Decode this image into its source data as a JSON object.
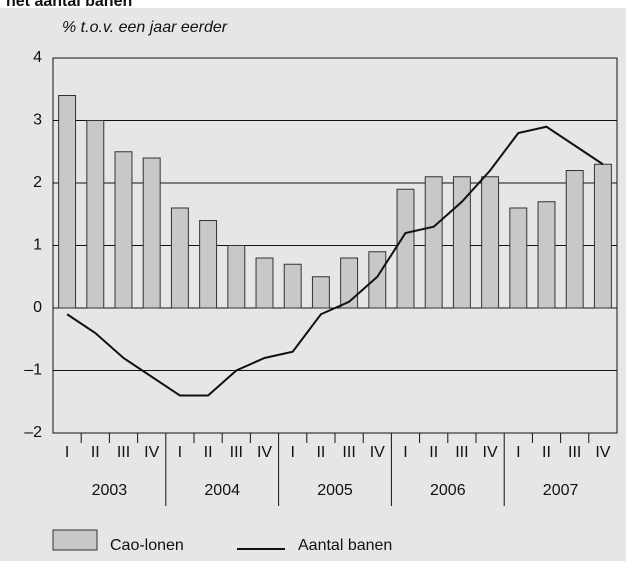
{
  "chart_data": {
    "type": "bar_line",
    "title": "het aantal banen",
    "y_label": "% t.o.v. een jaar eerder",
    "categories": [
      "I",
      "II",
      "III",
      "IV",
      "I",
      "II",
      "III",
      "IV",
      "I",
      "II",
      "III",
      "IV",
      "I",
      "II",
      "III",
      "IV",
      "I",
      "II",
      "III",
      "IV"
    ],
    "years": [
      "2003",
      "2004",
      "2005",
      "2006",
      "2007"
    ],
    "series": [
      {
        "name": "Cao-lonen",
        "kind": "bar",
        "color": "#c8c8c8",
        "values": [
          3.4,
          3.0,
          2.5,
          2.4,
          1.6,
          1.4,
          1.0,
          0.8,
          0.7,
          0.5,
          0.8,
          0.9,
          1.9,
          2.1,
          2.1,
          2.1,
          1.6,
          1.7,
          2.2,
          2.3
        ]
      },
      {
        "name": "Aantal banen",
        "kind": "line",
        "color": "#111111",
        "values": [
          -0.1,
          -0.4,
          -0.8,
          -1.1,
          -1.4,
          -1.4,
          -1.0,
          -0.8,
          -0.7,
          -0.1,
          0.1,
          0.5,
          1.2,
          1.3,
          1.7,
          2.2,
          2.8,
          2.9,
          2.6,
          2.3
        ]
      }
    ],
    "ylim": [
      -2,
      4
    ],
    "yticks": [
      {
        "value": -2,
        "label": "–2"
      },
      {
        "value": -1,
        "label": "–1"
      },
      0,
      1,
      2,
      3,
      4
    ],
    "grid": true
  }
}
